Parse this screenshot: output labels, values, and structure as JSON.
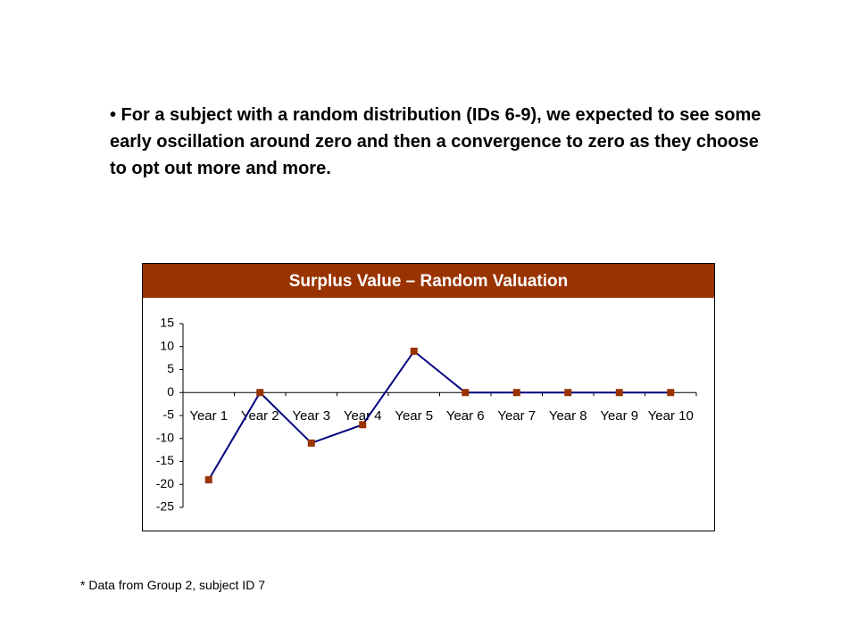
{
  "bullet": "• For a subject with a random distribution (IDs 6-9), we expected to see some early oscillation around zero and then a convergence to zero as they choose to opt out more and more.",
  "footnote": "* Data from Group 2, subject ID 7",
  "chart_data": {
    "type": "line",
    "title": "Surplus Value – Random Valuation",
    "categories": [
      "Year 1",
      "Year 2",
      "Year 3",
      "Year 4",
      "Year 5",
      "Year 6",
      "Year 7",
      "Year 8",
      "Year 9",
      "Year 10"
    ],
    "series": [
      {
        "values": [
          -19,
          0,
          -11,
          -7,
          9,
          0,
          0,
          0,
          0,
          0
        ],
        "color": "#000080",
        "marker_color": "#993300"
      }
    ],
    "ylim": [
      -25,
      15
    ],
    "yticks": [
      15,
      10,
      5,
      0,
      -5,
      -10,
      -15,
      -20,
      -25
    ],
    "grid": false,
    "title_band_color": "#993300"
  }
}
